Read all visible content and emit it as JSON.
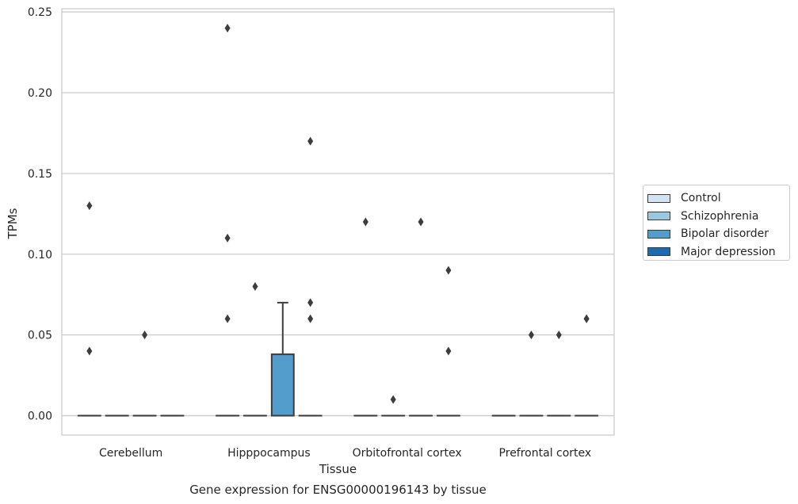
{
  "chart_data": {
    "type": "box",
    "xlabel": "Tissue",
    "ylabel": "TPMs",
    "caption": "Gene expression for ENSG00000196143 by tissue",
    "ylim": [
      -0.012,
      0.252
    ],
    "yticks": [
      "0.00",
      "0.05",
      "0.10",
      "0.15",
      "0.20",
      "0.25"
    ],
    "ytick_values": [
      0,
      0.05,
      0.1,
      0.15,
      0.2,
      0.25
    ],
    "grid": "horizontal",
    "legend_position": "right",
    "categories": [
      "Cerebellum",
      "Hipppocampus",
      "Orbitofrontal cortex",
      "Prefrontal cortex"
    ],
    "series": [
      {
        "name": "Control",
        "color": "#d2e3f3",
        "boxes": [
          {
            "q1": 0,
            "median": 0,
            "q3": 0,
            "whisker_low": 0,
            "whisker_high": 0,
            "outliers": [
              0.04,
              0.13
            ]
          },
          {
            "q1": 0,
            "median": 0,
            "q3": 0,
            "whisker_low": 0,
            "whisker_high": 0,
            "outliers": [
              0.06,
              0.11,
              0.24
            ]
          },
          {
            "q1": 0,
            "median": 0,
            "q3": 0,
            "whisker_low": 0,
            "whisker_high": 0,
            "outliers": [
              0.12
            ]
          },
          {
            "q1": 0,
            "median": 0,
            "q3": 0,
            "whisker_low": 0,
            "whisker_high": 0,
            "outliers": []
          }
        ]
      },
      {
        "name": "Schizophrenia",
        "color": "#9ac8e0",
        "boxes": [
          {
            "q1": 0,
            "median": 0,
            "q3": 0,
            "whisker_low": 0,
            "whisker_high": 0,
            "outliers": []
          },
          {
            "q1": 0,
            "median": 0,
            "q3": 0,
            "whisker_low": 0,
            "whisker_high": 0,
            "outliers": [
              0.08
            ]
          },
          {
            "q1": 0,
            "median": 0,
            "q3": 0,
            "whisker_low": 0,
            "whisker_high": 0,
            "outliers": [
              0.01
            ]
          },
          {
            "q1": 0,
            "median": 0,
            "q3": 0,
            "whisker_low": 0,
            "whisker_high": 0,
            "outliers": [
              0.05
            ]
          }
        ]
      },
      {
        "name": "Bipolar disorder",
        "color": "#529dcc",
        "boxes": [
          {
            "q1": 0,
            "median": 0,
            "q3": 0,
            "whisker_low": 0,
            "whisker_high": 0,
            "outliers": [
              0.05
            ]
          },
          {
            "q1": 0,
            "median": 0,
            "q3": 0.038,
            "whisker_low": 0,
            "whisker_high": 0.07,
            "outliers": []
          },
          {
            "q1": 0,
            "median": 0,
            "q3": 0,
            "whisker_low": 0,
            "whisker_high": 0,
            "outliers": [
              0.12
            ]
          },
          {
            "q1": 0,
            "median": 0,
            "q3": 0,
            "whisker_low": 0,
            "whisker_high": 0,
            "outliers": [
              0.05
            ]
          }
        ]
      },
      {
        "name": "Major depression",
        "color": "#1c6aaf",
        "boxes": [
          {
            "q1": 0,
            "median": 0,
            "q3": 0,
            "whisker_low": 0,
            "whisker_high": 0,
            "outliers": []
          },
          {
            "q1": 0,
            "median": 0,
            "q3": 0,
            "whisker_low": 0,
            "whisker_high": 0,
            "outliers": [
              0.06,
              0.07,
              0.17
            ]
          },
          {
            "q1": 0,
            "median": 0,
            "q3": 0,
            "whisker_low": 0,
            "whisker_high": 0,
            "outliers": [
              0.04,
              0.09
            ]
          },
          {
            "q1": 0,
            "median": 0,
            "q3": 0,
            "whisker_low": 0,
            "whisker_high": 0,
            "outliers": [
              0.06,
              0.06
            ]
          }
        ]
      }
    ]
  }
}
